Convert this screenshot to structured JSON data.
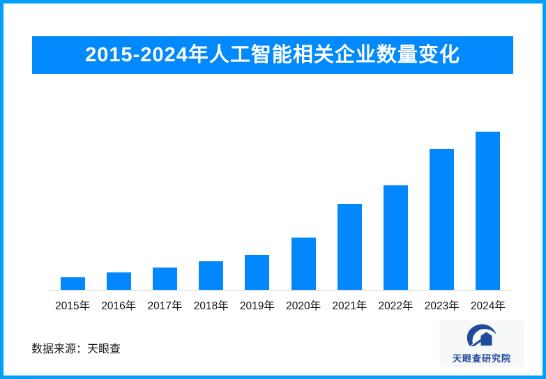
{
  "page": {
    "frame_color": "#01a0f8",
    "background": "#ffffff"
  },
  "header": {
    "title": "2015-2024年人工智能相关企业数量变化",
    "banner_color": "#0289fc",
    "text_color": "#ffffff"
  },
  "chart_data": {
    "type": "bar",
    "title": "2015-2024年人工智能相关企业数量变化",
    "categories": [
      "2015年",
      "2016年",
      "2017年",
      "2018年",
      "2019年",
      "2020年",
      "2021年",
      "2022年",
      "2023年",
      "2024年"
    ],
    "values": [
      8,
      11,
      14,
      18,
      22,
      33,
      54,
      66,
      89,
      100
    ],
    "value_note": "chart shows no numeric axis or data labels; values estimated from bar heights, indexed to 2024 = 100",
    "bar_color": "#0288fc",
    "axis_line_color": "#e8e8e8",
    "xlabel": "",
    "ylabel": "",
    "ylim": [
      0,
      100
    ],
    "grid": false,
    "legend": false
  },
  "footer": {
    "source_label": "数据来源：天眼查",
    "logo_text": "天眼查研究院",
    "logo_color": "#21499c"
  }
}
